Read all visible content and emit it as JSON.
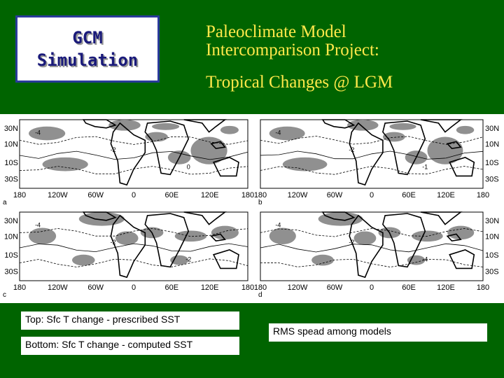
{
  "badge": {
    "text": "GCM\nSimulation"
  },
  "title": {
    "line1": "Paleoclimate Model",
    "line2": "Intercomparison Project:",
    "line3": "Tropical Changes @ LGM"
  },
  "figure": {
    "lon_labels": [
      "180",
      "120W",
      "60W",
      "0",
      "60E",
      "120E",
      "180"
    ],
    "lat_labels": [
      "30N",
      "10N",
      "10S",
      "30S"
    ],
    "panel_letters": [
      "a",
      "b",
      "c",
      "d"
    ],
    "contour_labels": [
      "-4",
      "-2",
      "0",
      "-4",
      "-2",
      "-1",
      "-4",
      "-2",
      "-2",
      "-4",
      "-2",
      "-4",
      "-2",
      "-4"
    ]
  },
  "captions": {
    "top": "Top:  Sfc T change - prescribed SST",
    "bottom": "Bottom:  Sfc T change - computed SST",
    "rms": "RMS spead among models"
  },
  "colors": {
    "background": "#006400",
    "title": "#ffe84a",
    "shading": "#909090",
    "badge_border": "#2a3a9a"
  }
}
